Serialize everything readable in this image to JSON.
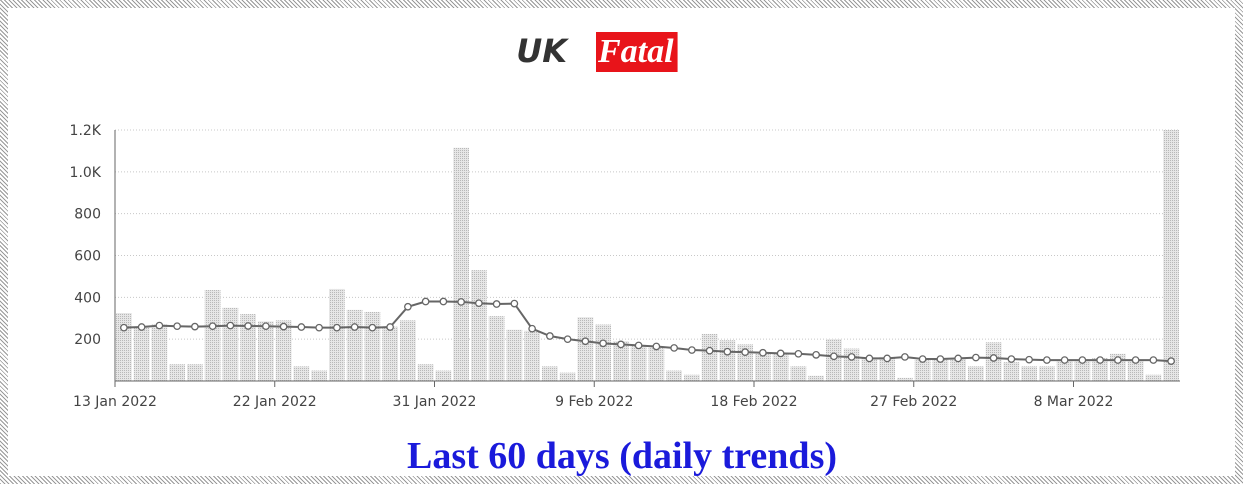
{
  "chart_data": {
    "type": "combo",
    "title_parts": [
      "UK",
      "Fatal"
    ],
    "caption": "Last 60 days (daily trends)",
    "x": [
      "2022-01-13",
      "2022-01-14",
      "2022-01-15",
      "2022-01-16",
      "2022-01-17",
      "2022-01-18",
      "2022-01-19",
      "2022-01-20",
      "2022-01-21",
      "2022-01-22",
      "2022-01-23",
      "2022-01-24",
      "2022-01-25",
      "2022-01-26",
      "2022-01-27",
      "2022-01-28",
      "2022-01-29",
      "2022-01-30",
      "2022-01-31",
      "2022-02-01",
      "2022-02-02",
      "2022-02-03",
      "2022-02-04",
      "2022-02-05",
      "2022-02-06",
      "2022-02-07",
      "2022-02-08",
      "2022-02-09",
      "2022-02-10",
      "2022-02-11",
      "2022-02-12",
      "2022-02-13",
      "2022-02-14",
      "2022-02-15",
      "2022-02-16",
      "2022-02-17",
      "2022-02-18",
      "2022-02-19",
      "2022-02-20",
      "2022-02-21",
      "2022-02-22",
      "2022-02-23",
      "2022-02-24",
      "2022-02-25",
      "2022-02-26",
      "2022-02-27",
      "2022-02-28",
      "2022-03-01",
      "2022-03-02",
      "2022-03-03",
      "2022-03-04",
      "2022-03-05",
      "2022-03-06",
      "2022-03-07",
      "2022-03-08",
      "2022-03-09",
      "2022-03-10",
      "2022-03-11",
      "2022-03-12",
      "2022-03-13"
    ],
    "series": [
      {
        "type": "bar",
        "color": "#c8c8c8",
        "values": [
          325,
          260,
          270,
          80,
          80,
          435,
          350,
          320,
          285,
          290,
          70,
          50,
          440,
          340,
          330,
          260,
          290,
          80,
          50,
          1115,
          530,
          310,
          245,
          240,
          70,
          40,
          305,
          270,
          190,
          170,
          160,
          50,
          30,
          225,
          195,
          175,
          130,
          130,
          70,
          25,
          200,
          155,
          110,
          115,
          15,
          100,
          105,
          110,
          70,
          185,
          90,
          70,
          70,
          95,
          95,
          110,
          130,
          100,
          30,
          1200
        ]
      },
      {
        "type": "line",
        "color": "#666666",
        "values": [
          255,
          258,
          265,
          262,
          260,
          262,
          265,
          263,
          262,
          260,
          258,
          255,
          255,
          258,
          255,
          258,
          355,
          380,
          380,
          378,
          372,
          368,
          370,
          250,
          215,
          200,
          190,
          180,
          175,
          170,
          165,
          158,
          148,
          145,
          140,
          138,
          135,
          132,
          130,
          125,
          118,
          115,
          108,
          108,
          115,
          105,
          105,
          108,
          112,
          110,
          105,
          102,
          100,
          100,
          100,
          100,
          100,
          100,
          100,
          95
        ]
      }
    ],
    "xlim": [
      "2022-01-13",
      "2022-03-14"
    ],
    "xticks": [
      {
        "value": "2022-01-13",
        "label": "13 Jan 2022"
      },
      {
        "value": "2022-01-22",
        "label": "22 Jan 2022"
      },
      {
        "value": "2022-01-31",
        "label": "31 Jan 2022"
      },
      {
        "value": "2022-02-09",
        "label": "9 Feb 2022"
      },
      {
        "value": "2022-02-18",
        "label": "18 Feb 2022"
      },
      {
        "value": "2022-02-27",
        "label": "27 Feb 2022"
      },
      {
        "value": "2022-03-08",
        "label": "8 Mar 2022"
      }
    ],
    "ylim": [
      0,
      1200
    ],
    "yticks": [
      200,
      400,
      600,
      800,
      {
        "value": 1000,
        "label": "1.0K"
      },
      {
        "value": 1200,
        "label": "1.2K"
      }
    ],
    "grid": true
  }
}
